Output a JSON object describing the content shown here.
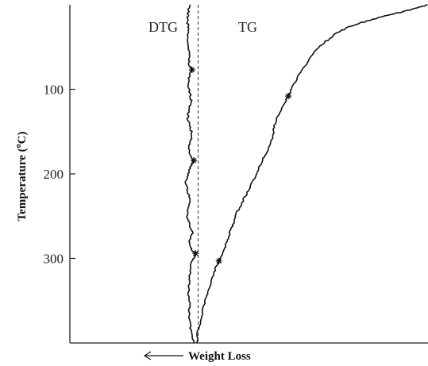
{
  "chart_data": {
    "type": "line",
    "xlabel": "Weight Loss",
    "ylabel": "Temperature (°C)",
    "ylabel_main": "Temperature (",
    "ylabel_degree": "o",
    "ylabel_unit": "C)",
    "yticks": [
      100,
      200,
      300
    ],
    "ylim": [
      0,
      400
    ],
    "ylim_direction": "downward",
    "xlim": [
      0,
      100
    ],
    "x_direction_arrow": "left",
    "grid": false,
    "series": [
      {
        "name": "DTG",
        "points": [
          [
            33.5,
            0
          ],
          [
            33.0,
            10
          ],
          [
            32.8,
            20
          ],
          [
            33.1,
            30
          ],
          [
            32.7,
            40
          ],
          [
            33.0,
            50
          ],
          [
            33.4,
            60
          ],
          [
            33.2,
            70
          ],
          [
            34.1,
            77
          ],
          [
            33.3,
            85
          ],
          [
            33.0,
            95
          ],
          [
            33.5,
            105
          ],
          [
            34.0,
            115
          ],
          [
            33.2,
            125
          ],
          [
            32.9,
            135
          ],
          [
            33.6,
            145
          ],
          [
            34.2,
            155
          ],
          [
            33.4,
            165
          ],
          [
            33.2,
            175
          ],
          [
            34.6,
            184
          ],
          [
            33.6,
            192
          ],
          [
            33.0,
            200
          ],
          [
            32.4,
            210
          ],
          [
            32.9,
            220
          ],
          [
            33.5,
            230
          ],
          [
            33.0,
            240
          ],
          [
            32.8,
            250
          ],
          [
            33.4,
            260
          ],
          [
            34.2,
            270
          ],
          [
            33.2,
            280
          ],
          [
            34.0,
            290
          ],
          [
            35.1,
            294
          ],
          [
            34.2,
            302
          ],
          [
            33.7,
            312
          ],
          [
            33.4,
            325
          ],
          [
            33.1,
            340
          ],
          [
            33.5,
            355
          ],
          [
            33.2,
            370
          ],
          [
            33.8,
            385
          ],
          [
            34.6,
            400
          ]
        ]
      },
      {
        "name": "TG",
        "points": [
          [
            100,
            0
          ],
          [
            97,
            4
          ],
          [
            93,
            8
          ],
          [
            88,
            13
          ],
          [
            83,
            19
          ],
          [
            78,
            26
          ],
          [
            74,
            35
          ],
          [
            71,
            45
          ],
          [
            68,
            57
          ],
          [
            66,
            70
          ],
          [
            64,
            82
          ],
          [
            62.5,
            95
          ],
          [
            61,
            108
          ],
          [
            59.5,
            120
          ],
          [
            58,
            132
          ],
          [
            57,
            145
          ],
          [
            56.5,
            158
          ],
          [
            55.5,
            170
          ],
          [
            54,
            182
          ],
          [
            52.5,
            196
          ],
          [
            51,
            210
          ],
          [
            49.5,
            222
          ],
          [
            48,
            234
          ],
          [
            46.5,
            247
          ],
          [
            45.5,
            260
          ],
          [
            44.5,
            272
          ],
          [
            43.5,
            284
          ],
          [
            42.5,
            296
          ],
          [
            41,
            308
          ],
          [
            40,
            320
          ],
          [
            39,
            333
          ],
          [
            38,
            346
          ],
          [
            37.2,
            360
          ],
          [
            36.5,
            373
          ],
          [
            35.8,
            386
          ],
          [
            35.4,
            400
          ]
        ]
      }
    ],
    "reference_line": {
      "style": "dashed",
      "x": 35.8
    },
    "markers": [
      {
        "series": "DTG",
        "y": 77
      },
      {
        "series": "DTG",
        "y": 184
      },
      {
        "series": "DTG",
        "y": 294
      },
      {
        "series": "TG",
        "y": 108
      },
      {
        "series": "TG",
        "y": 303
      }
    ],
    "curve_labels": [
      {
        "series": "DTG",
        "text": "DTG"
      },
      {
        "series": "TG",
        "text": "TG"
      }
    ]
  }
}
